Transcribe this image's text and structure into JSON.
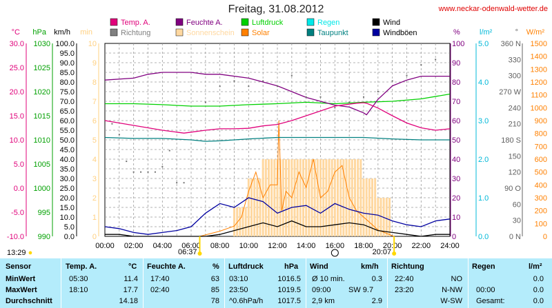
{
  "header": {
    "title": "Freitag, 31.08.2012",
    "site": "www.neckar-odenwald-wetter.de"
  },
  "legend": [
    {
      "label": "Temp. A.",
      "color": "#e0007a"
    },
    {
      "label": "Richtung",
      "color": "#808080"
    },
    {
      "label": "Feuchte A.",
      "color": "#800080"
    },
    {
      "label": "Sonnenschein",
      "color": "#ffd8a0"
    },
    {
      "label": "Luftdruck",
      "color": "#00d000"
    },
    {
      "label": "Solar",
      "color": "#ff8000"
    },
    {
      "label": "Regen",
      "color": "#00e8e8"
    },
    {
      "label": "Taupunkt",
      "color": "#008080"
    },
    {
      "label": "Wind",
      "color": "#000000"
    },
    {
      "label": "Windböen",
      "color": "#0000a0"
    }
  ],
  "axes": {
    "left": [
      {
        "unit": "°C",
        "color": "#e0007a",
        "ticks": [
          "30.0",
          "25.0",
          "20.0",
          "15.0",
          "10.0",
          "5.0",
          "0.0",
          "-5.0",
          "-10.0"
        ]
      },
      {
        "unit": "hPa",
        "color": "#00a000",
        "ticks": [
          "1030",
          "1025",
          "1020",
          "1015",
          "1010",
          "1005",
          "1000",
          "995",
          "990"
        ]
      },
      {
        "unit": "km/h",
        "color": "#000000",
        "ticks": [
          "100.0",
          "95.0",
          "90.0",
          "85.0",
          "80.0",
          "75.0",
          "70.0",
          "65.0",
          "60.0",
          "55.0",
          "50.0",
          "45.0",
          "40.0",
          "35.0",
          "30.0",
          "25.0",
          "20.0",
          "15.0",
          "10.0",
          "5.0",
          "0.0"
        ]
      },
      {
        "unit": "min",
        "color": "#ffd080",
        "ticks": [
          "10",
          "9",
          "8",
          "7",
          "6",
          "5",
          "4",
          "3",
          "2",
          "1",
          "0"
        ]
      }
    ],
    "right": [
      {
        "unit": "%",
        "color": "#800080",
        "ticks": [
          "100",
          "90",
          "80",
          "70",
          "60",
          "50",
          "40",
          "30",
          "20",
          "10",
          "0"
        ]
      },
      {
        "unit": "l/m²",
        "color": "#00b8d8",
        "ticks": [
          "5.0",
          "4.0",
          "3.0",
          "2.0",
          "1.0",
          "0.0"
        ]
      },
      {
        "unit": "°",
        "color": "#606060",
        "ticks": [
          "360 N",
          "330",
          "300",
          "270 W",
          "240",
          "210",
          "180 S",
          "150",
          "120",
          "90 O",
          "60",
          "30",
          "0 N"
        ]
      },
      {
        "unit": "W/m²",
        "color": "#ff8000",
        "ticks": [
          "1500",
          "1400",
          "1300",
          "1200",
          "1100",
          "1000",
          "900",
          "800",
          "700",
          "600",
          "500",
          "400",
          "300",
          "200",
          "100",
          "0"
        ]
      }
    ],
    "x_ticks": [
      "00:00",
      "02:00",
      "04:00",
      "06:00",
      "08:00",
      "10:00",
      "12:00",
      "14:00",
      "16:00",
      "18:00",
      "20:00",
      "22:00",
      "24:00"
    ]
  },
  "sun": {
    "rise": "06:37",
    "set": "20:07",
    "duration": "13:29"
  },
  "chart_data": {
    "type": "line",
    "x_unit": "hour of day",
    "xlim": [
      0,
      24
    ],
    "series": [
      {
        "name": "Temp. A.",
        "axis": "°C",
        "x": [
          0,
          1,
          2,
          3,
          4,
          5,
          5.5,
          6,
          7,
          8,
          9,
          10,
          11,
          12,
          13,
          14,
          15,
          16,
          17,
          17.5,
          18,
          18.2,
          19,
          20,
          21,
          22,
          23,
          24
        ],
        "values": [
          14.0,
          13.5,
          13.0,
          12.5,
          12.0,
          11.6,
          11.4,
          11.6,
          12.0,
          12.3,
          12.3,
          12.4,
          12.9,
          13.2,
          14.0,
          15.0,
          16.0,
          17.0,
          17.4,
          17.6,
          17.7,
          17.6,
          16.6,
          15.0,
          13.5,
          12.5,
          12.0,
          12.3
        ]
      },
      {
        "name": "Feuchte A.",
        "axis": "%",
        "x": [
          0,
          2,
          3,
          4,
          6,
          7,
          8,
          10,
          11,
          12,
          13,
          14,
          15,
          16,
          17,
          18,
          18.2,
          19,
          20,
          21,
          22,
          23,
          24
        ],
        "values": [
          81,
          82,
          84,
          85,
          85,
          84,
          84,
          82,
          80,
          78,
          75,
          72,
          70,
          68,
          67,
          64,
          63,
          71,
          78,
          81,
          83,
          83,
          83
        ]
      },
      {
        "name": "Luftdruck",
        "axis": "hPa",
        "x": [
          0,
          2,
          4,
          6,
          8,
          10,
          12,
          14,
          16,
          18,
          20,
          22,
          24
        ],
        "values": [
          1017.5,
          1017.5,
          1017.3,
          1017.0,
          1017.0,
          1017.3,
          1017.5,
          1017.8,
          1017.5,
          1017.8,
          1018.0,
          1018.5,
          1019.5
        ]
      },
      {
        "name": "Taupunkt",
        "axis": "°C",
        "x": [
          0,
          2,
          4,
          6,
          7,
          8,
          10,
          12,
          14,
          16,
          18,
          20,
          22,
          24
        ],
        "values": [
          10.5,
          10.3,
          10.3,
          10.0,
          9.7,
          9.8,
          10.2,
          10.5,
          10.5,
          10.5,
          10.5,
          10.2,
          10.0,
          10.0
        ]
      },
      {
        "name": "Wind",
        "axis": "km/h",
        "x": [
          0,
          1,
          2,
          3,
          4,
          5,
          6,
          7,
          8,
          9,
          10,
          11,
          12,
          13,
          14,
          15,
          16,
          17,
          18,
          19,
          20,
          21,
          22,
          23,
          24
        ],
        "values": [
          1,
          1,
          0,
          0,
          0,
          0,
          0,
          0,
          1,
          3,
          5,
          7,
          5,
          8,
          5,
          5,
          6,
          7,
          6,
          3,
          2,
          1,
          0,
          1,
          1
        ]
      },
      {
        "name": "Windböen",
        "axis": "km/h",
        "x": [
          0,
          1,
          2,
          3,
          4,
          5,
          6,
          7,
          8,
          9,
          10,
          11,
          12,
          13,
          14,
          15,
          16,
          17,
          18,
          19,
          20,
          21,
          22,
          23,
          24
        ],
        "values": [
          5,
          4,
          2,
          1,
          2,
          3,
          5,
          12,
          17,
          15,
          20,
          18,
          12,
          15,
          16,
          12,
          17,
          14,
          12,
          11,
          8,
          6,
          5,
          8,
          9
        ]
      },
      {
        "name": "Solar",
        "axis": "W/m²",
        "x": [
          6.6,
          8,
          9,
          9.5,
          10,
          10.5,
          11,
          11.5,
          12,
          12.1,
          12.3,
          12.6,
          13,
          13.5,
          14,
          14.5,
          15,
          15.5,
          16,
          16.5,
          17,
          17.5,
          18,
          18.5,
          19,
          20.1
        ],
        "values": [
          0,
          40,
          80,
          150,
          350,
          500,
          300,
          400,
          400,
          900,
          200,
          350,
          300,
          500,
          380,
          600,
          300,
          350,
          500,
          550,
          300,
          200,
          150,
          100,
          50,
          0
        ]
      },
      {
        "name": "Sonnenschein",
        "axis": "min",
        "x": [
          9,
          10,
          11,
          12,
          13,
          14,
          15,
          16,
          17,
          18,
          19
        ],
        "values": [
          1.5,
          3,
          4,
          4,
          4,
          4,
          4,
          4,
          4,
          3,
          2
        ]
      },
      {
        "name": "Richtung",
        "axis": "°",
        "type": "scatter",
        "x": [
          0.5,
          1,
          1.5,
          2,
          2.5,
          3,
          3.5,
          4,
          4.5,
          5,
          5.5,
          7,
          8,
          9,
          10,
          11,
          12,
          13,
          14,
          15,
          16,
          17,
          18,
          19,
          20,
          21,
          22,
          23
        ],
        "values": [
          210,
          190,
          140,
          120,
          120,
          120,
          120,
          130,
          160,
          100,
          100,
          250,
          280,
          290,
          280,
          290,
          280,
          300,
          260,
          260,
          240,
          250,
          260,
          270,
          290,
          300,
          320,
          330
        ]
      }
    ]
  },
  "table": {
    "headers": {
      "sensor": "Sensor",
      "temp": "Temp. A.",
      "temp_unit": "°C",
      "hum": "Feuchte A.",
      "hum_unit": "%",
      "press": "Luftdruck",
      "press_unit": "hPa",
      "wind": "Wind",
      "wind_unit": "km/h",
      "dir": "Richtung",
      "rain": "Regen",
      "rain_unit": "l/m²"
    },
    "rows": [
      {
        "label": "MinWert",
        "t_time": "05:30",
        "t_val": "11.4",
        "h_time": "17:40",
        "h_val": "63",
        "p_time": "03:10",
        "p_val": "1016.5",
        "w_time": "Ø 10 min.",
        "w_val": "0.3",
        "d_time": "22:40",
        "d_val": "NO",
        "r_time": "",
        "r_val": "0.0"
      },
      {
        "label": "MaxWert",
        "t_time": "18:10",
        "t_val": "17.7",
        "h_time": "02:40",
        "h_val": "85",
        "p_time": "23:50",
        "p_val": "1019.5",
        "w_time": "09:00",
        "w_dir": "SW 9.7",
        "w_val": "",
        "d_time": "23:20",
        "d_val": "N-NW",
        "r_time": "00:00",
        "r_val": "0.0"
      },
      {
        "label": "Durchschnitt",
        "t_time": "",
        "t_val": "14.18",
        "h_time": "",
        "h_val": "78",
        "p_time": "^0.6hPa/h",
        "p_val": "1017.5",
        "w_time": "2,9 km",
        "w_val": "2.9",
        "d_time": "",
        "d_val": "W-SW",
        "r_time": "Gesamt:",
        "r_val": "0.0"
      }
    ]
  }
}
